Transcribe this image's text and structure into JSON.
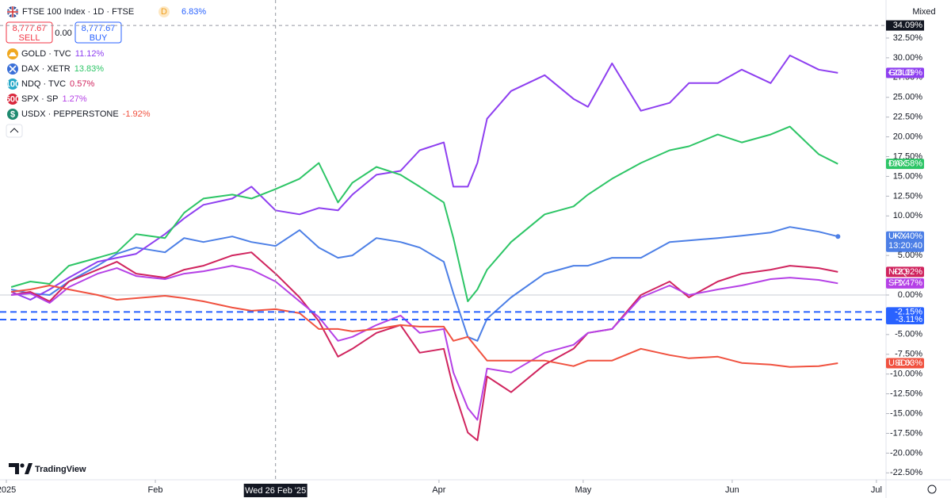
{
  "chart_data": {
    "type": "line",
    "title": "FTSE 100 Index · 1D · FTSE",
    "interval_badge": "D",
    "change": "6.83%",
    "sell_price": "8,777.67",
    "sell_label": "SELL",
    "spread": "0.00",
    "buy_price": "8,777.67",
    "buy_label": "BUY",
    "scale_mode": "Mixed",
    "watermark": "TradingView",
    "x": [
      "2025-01-02",
      "2025-01-06",
      "2025-01-10",
      "2025-01-14",
      "2025-01-20",
      "2025-01-24",
      "2025-01-28",
      "2025-02-03",
      "2025-02-07",
      "2025-02-11",
      "2025-02-17",
      "2025-02-21",
      "2025-02-26",
      "2025-03-03",
      "2025-03-07",
      "2025-03-11",
      "2025-03-14",
      "2025-03-19",
      "2025-03-24",
      "2025-03-28",
      "2025-04-02",
      "2025-04-04",
      "2025-04-07",
      "2025-04-09",
      "2025-04-11",
      "2025-04-16",
      "2025-04-23",
      "2025-04-29",
      "2025-05-02",
      "2025-05-07",
      "2025-05-13",
      "2025-05-19",
      "2025-05-23",
      "2025-05-29",
      "2025-06-03",
      "2025-06-09",
      "2025-06-13",
      "2025-06-19",
      "2025-06-23"
    ],
    "xlim": [
      "2025-01-01",
      "2025-07-03"
    ],
    "xticks": [
      {
        "value": "2025-01-01",
        "label": "2025"
      },
      {
        "value": "2025-02-01",
        "label": "Feb"
      },
      {
        "value": "2025-04-01",
        "label": "Apr"
      },
      {
        "value": "2025-05-01",
        "label": "May"
      },
      {
        "value": "2025-06-01",
        "label": "Jun"
      },
      {
        "value": "2025-07-01",
        "label": "Jul"
      }
    ],
    "ylim": [
      -23.17,
      37.31
    ],
    "yticks": [
      {
        "value": 32.5,
        "label": "32.50%"
      },
      {
        "value": 30,
        "label": "30.00%"
      },
      {
        "value": 27.5,
        "label": "27.50%"
      },
      {
        "value": 25,
        "label": "25.00%"
      },
      {
        "value": 22.5,
        "label": "22.50%"
      },
      {
        "value": 20,
        "label": "20.00%"
      },
      {
        "value": 17.5,
        "label": "17.50%"
      },
      {
        "value": 15,
        "label": "15.00%"
      },
      {
        "value": 12.5,
        "label": "12.50%"
      },
      {
        "value": 10,
        "label": "10.00%"
      },
      {
        "value": 5,
        "label": "5.00%"
      },
      {
        "value": 0,
        "label": "0.00%"
      },
      {
        "value": -5,
        "label": "-5.00%"
      },
      {
        "value": -7.5,
        "label": "-7.50%"
      },
      {
        "value": -10,
        "label": "-10.00%"
      },
      {
        "value": -12.5,
        "label": "-12.50%"
      },
      {
        "value": -15,
        "label": "-15.00%"
      },
      {
        "value": -17.5,
        "label": "-17.50%"
      },
      {
        "value": -20,
        "label": "-20.00%"
      },
      {
        "value": -22.5,
        "label": "-22.50%"
      }
    ],
    "grid": false,
    "series": [
      {
        "name": "UKX",
        "color": "#4c7fe6",
        "last_label": "+7.40%",
        "countdown": "13:20:40",
        "values": [
          0.7,
          0.2,
          0,
          1.7,
          3.7,
          5.2,
          6.0,
          5.4,
          7.2,
          6.7,
          7.4,
          6.7,
          6.2,
          8.2,
          6.0,
          4.7,
          5.0,
          7.2,
          6.7,
          6.0,
          4.2,
          0.2,
          -5.3,
          -5.8,
          -3.0,
          -0.3,
          2.7,
          3.7,
          3.7,
          4.7,
          4.7,
          6.7,
          6.9,
          7.2,
          7.5,
          7.9,
          8.6,
          8.0,
          7.4
        ]
      },
      {
        "name": "GOLD",
        "color": "#8e3ff0",
        "last_label": "+28.09%",
        "legend_label": "GOLD · TVC",
        "legend_value": "11.12%",
        "icon_color": "#f0a820",
        "values": [
          0.4,
          -0.6,
          0.7,
          2.2,
          4.2,
          4.7,
          5.2,
          7.7,
          9.7,
          11.4,
          12.2,
          13.7,
          10.7,
          10.2,
          11.0,
          10.7,
          12.7,
          15.2,
          15.7,
          18.3,
          19.3,
          13.7,
          13.7,
          16.7,
          22.3,
          25.8,
          27.8,
          24.8,
          23.8,
          29.3,
          23.3,
          24.3,
          26.8,
          26.8,
          28.5,
          26.8,
          30.3,
          28.5,
          28.09
        ]
      },
      {
        "name": "DAX",
        "color": "#2dc566",
        "last_label": "+16.58%",
        "legend_label": "DAX · XETR",
        "legend_value": "13.83%",
        "icon_color": "#3a6fd8",
        "values": [
          1.0,
          1.7,
          1.4,
          3.7,
          4.7,
          5.4,
          7.7,
          7.2,
          10.4,
          12.2,
          12.7,
          12.2,
          13.4,
          14.7,
          16.7,
          11.7,
          14.2,
          16.2,
          15.2,
          13.7,
          11.7,
          7.2,
          -0.8,
          0.7,
          3.2,
          6.7,
          10.2,
          11.2,
          12.7,
          14.7,
          16.7,
          18.3,
          18.8,
          20.3,
          19.3,
          20.3,
          21.3,
          17.8,
          16.58
        ]
      },
      {
        "name": "NDQ",
        "color": "#d0245e",
        "last_label": "+2.92%",
        "legend_label": "NDQ · TVC",
        "legend_value": "0.57%",
        "icon": "100",
        "icon_color": "#26a8c8",
        "values": [
          0,
          0.4,
          -0.8,
          1.7,
          3.2,
          4.2,
          2.7,
          2.2,
          3.2,
          3.7,
          5.0,
          5.4,
          2.7,
          -0.3,
          -3.3,
          -7.8,
          -6.8,
          -4.8,
          -3.8,
          -7.3,
          -6.8,
          -11.8,
          -17.4,
          -18.4,
          -10.3,
          -12.3,
          -8.8,
          -6.8,
          -4.8,
          -4.3,
          0,
          1.7,
          -0.3,
          1.7,
          2.7,
          3.2,
          3.7,
          3.4,
          2.92
        ]
      },
      {
        "name": "SPX",
        "color": "#b541e6",
        "last_label": "+1.47%",
        "legend_label": "SPX · SP",
        "legend_value": "1.27%",
        "icon": "500",
        "icon_color": "#d9263c",
        "values": [
          0,
          0.2,
          -1.0,
          1.0,
          2.7,
          3.4,
          2.4,
          2.0,
          2.7,
          3.0,
          3.7,
          3.2,
          1.7,
          -0.8,
          -2.8,
          -5.8,
          -5.3,
          -3.8,
          -2.6,
          -4.8,
          -4.3,
          -9.8,
          -14.3,
          -15.8,
          -9.3,
          -9.8,
          -7.3,
          -6.3,
          -4.8,
          -4.3,
          -0.3,
          1.2,
          0,
          0.7,
          1.2,
          2.0,
          2.2,
          1.9,
          1.47
        ]
      },
      {
        "name": "USDX",
        "color": "#f0513f",
        "last_label": "-8.63%",
        "legend_label": "USDX · PEPPERSTONE",
        "legend_value": "-1.92%",
        "icon": "$",
        "icon_color": "#1f8a70",
        "values": [
          0.4,
          0.7,
          1.2,
          0.7,
          0,
          -0.6,
          -0.4,
          -0.1,
          -0.4,
          -0.8,
          -1.6,
          -2.0,
          -1.8,
          -2.3,
          -4.3,
          -4.3,
          -4.6,
          -4.3,
          -3.8,
          -4.0,
          -4.0,
          -5.8,
          -5.3,
          -6.8,
          -8.3,
          -8.3,
          -8.3,
          -9.0,
          -8.3,
          -8.3,
          -6.8,
          -7.6,
          -8.0,
          -7.8,
          -8.6,
          -8.8,
          -9.1,
          -9.0,
          -8.63
        ]
      }
    ],
    "order_lines": [
      {
        "value": -2.15,
        "label": "-2.15%"
      },
      {
        "value": -3.11,
        "label": "-3.11%"
      }
    ],
    "order_color": "#2962ff",
    "crosshair": {
      "x": "2025-02-26",
      "x_label": "Wed 26 Feb '25",
      "y": 34.09,
      "y_label": "34.09%"
    }
  }
}
